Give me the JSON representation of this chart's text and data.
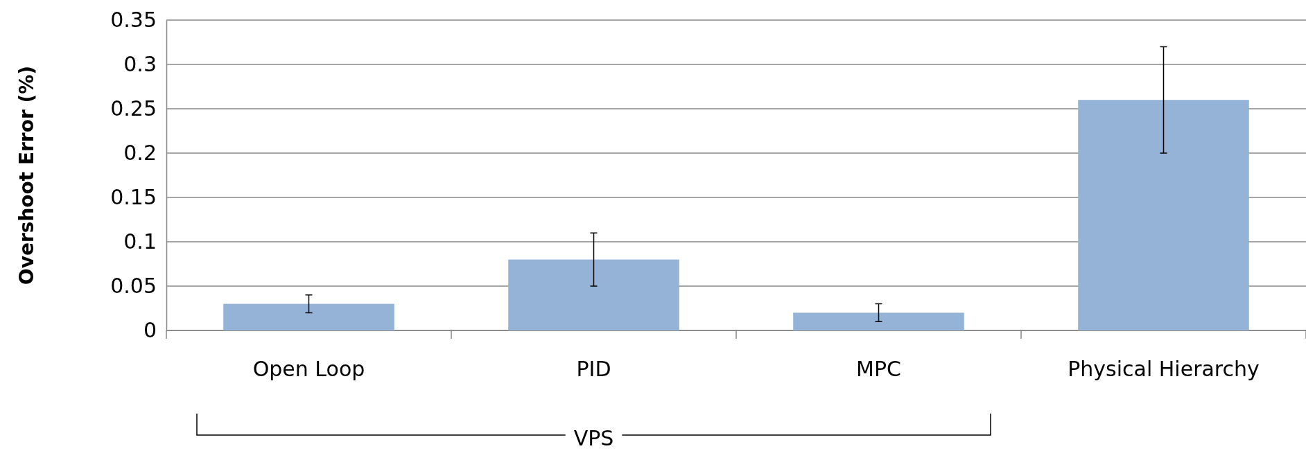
{
  "chart_data": {
    "type": "bar",
    "ylabel": "Overshoot Error (%)",
    "categories": [
      "Open Loop",
      "PID",
      "MPC",
      "Physical Hierarchy"
    ],
    "values": [
      0.03,
      0.08,
      0.02,
      0.26
    ],
    "errors": [
      0.01,
      0.03,
      0.01,
      0.06
    ],
    "color": "#95b3d7",
    "ylim": [
      0,
      0.35
    ],
    "yticks": [
      0,
      0.05,
      0.1,
      0.15,
      0.2,
      0.25,
      0.3,
      0.35
    ],
    "grid": "y",
    "annotations": [
      "VPS"
    ]
  }
}
